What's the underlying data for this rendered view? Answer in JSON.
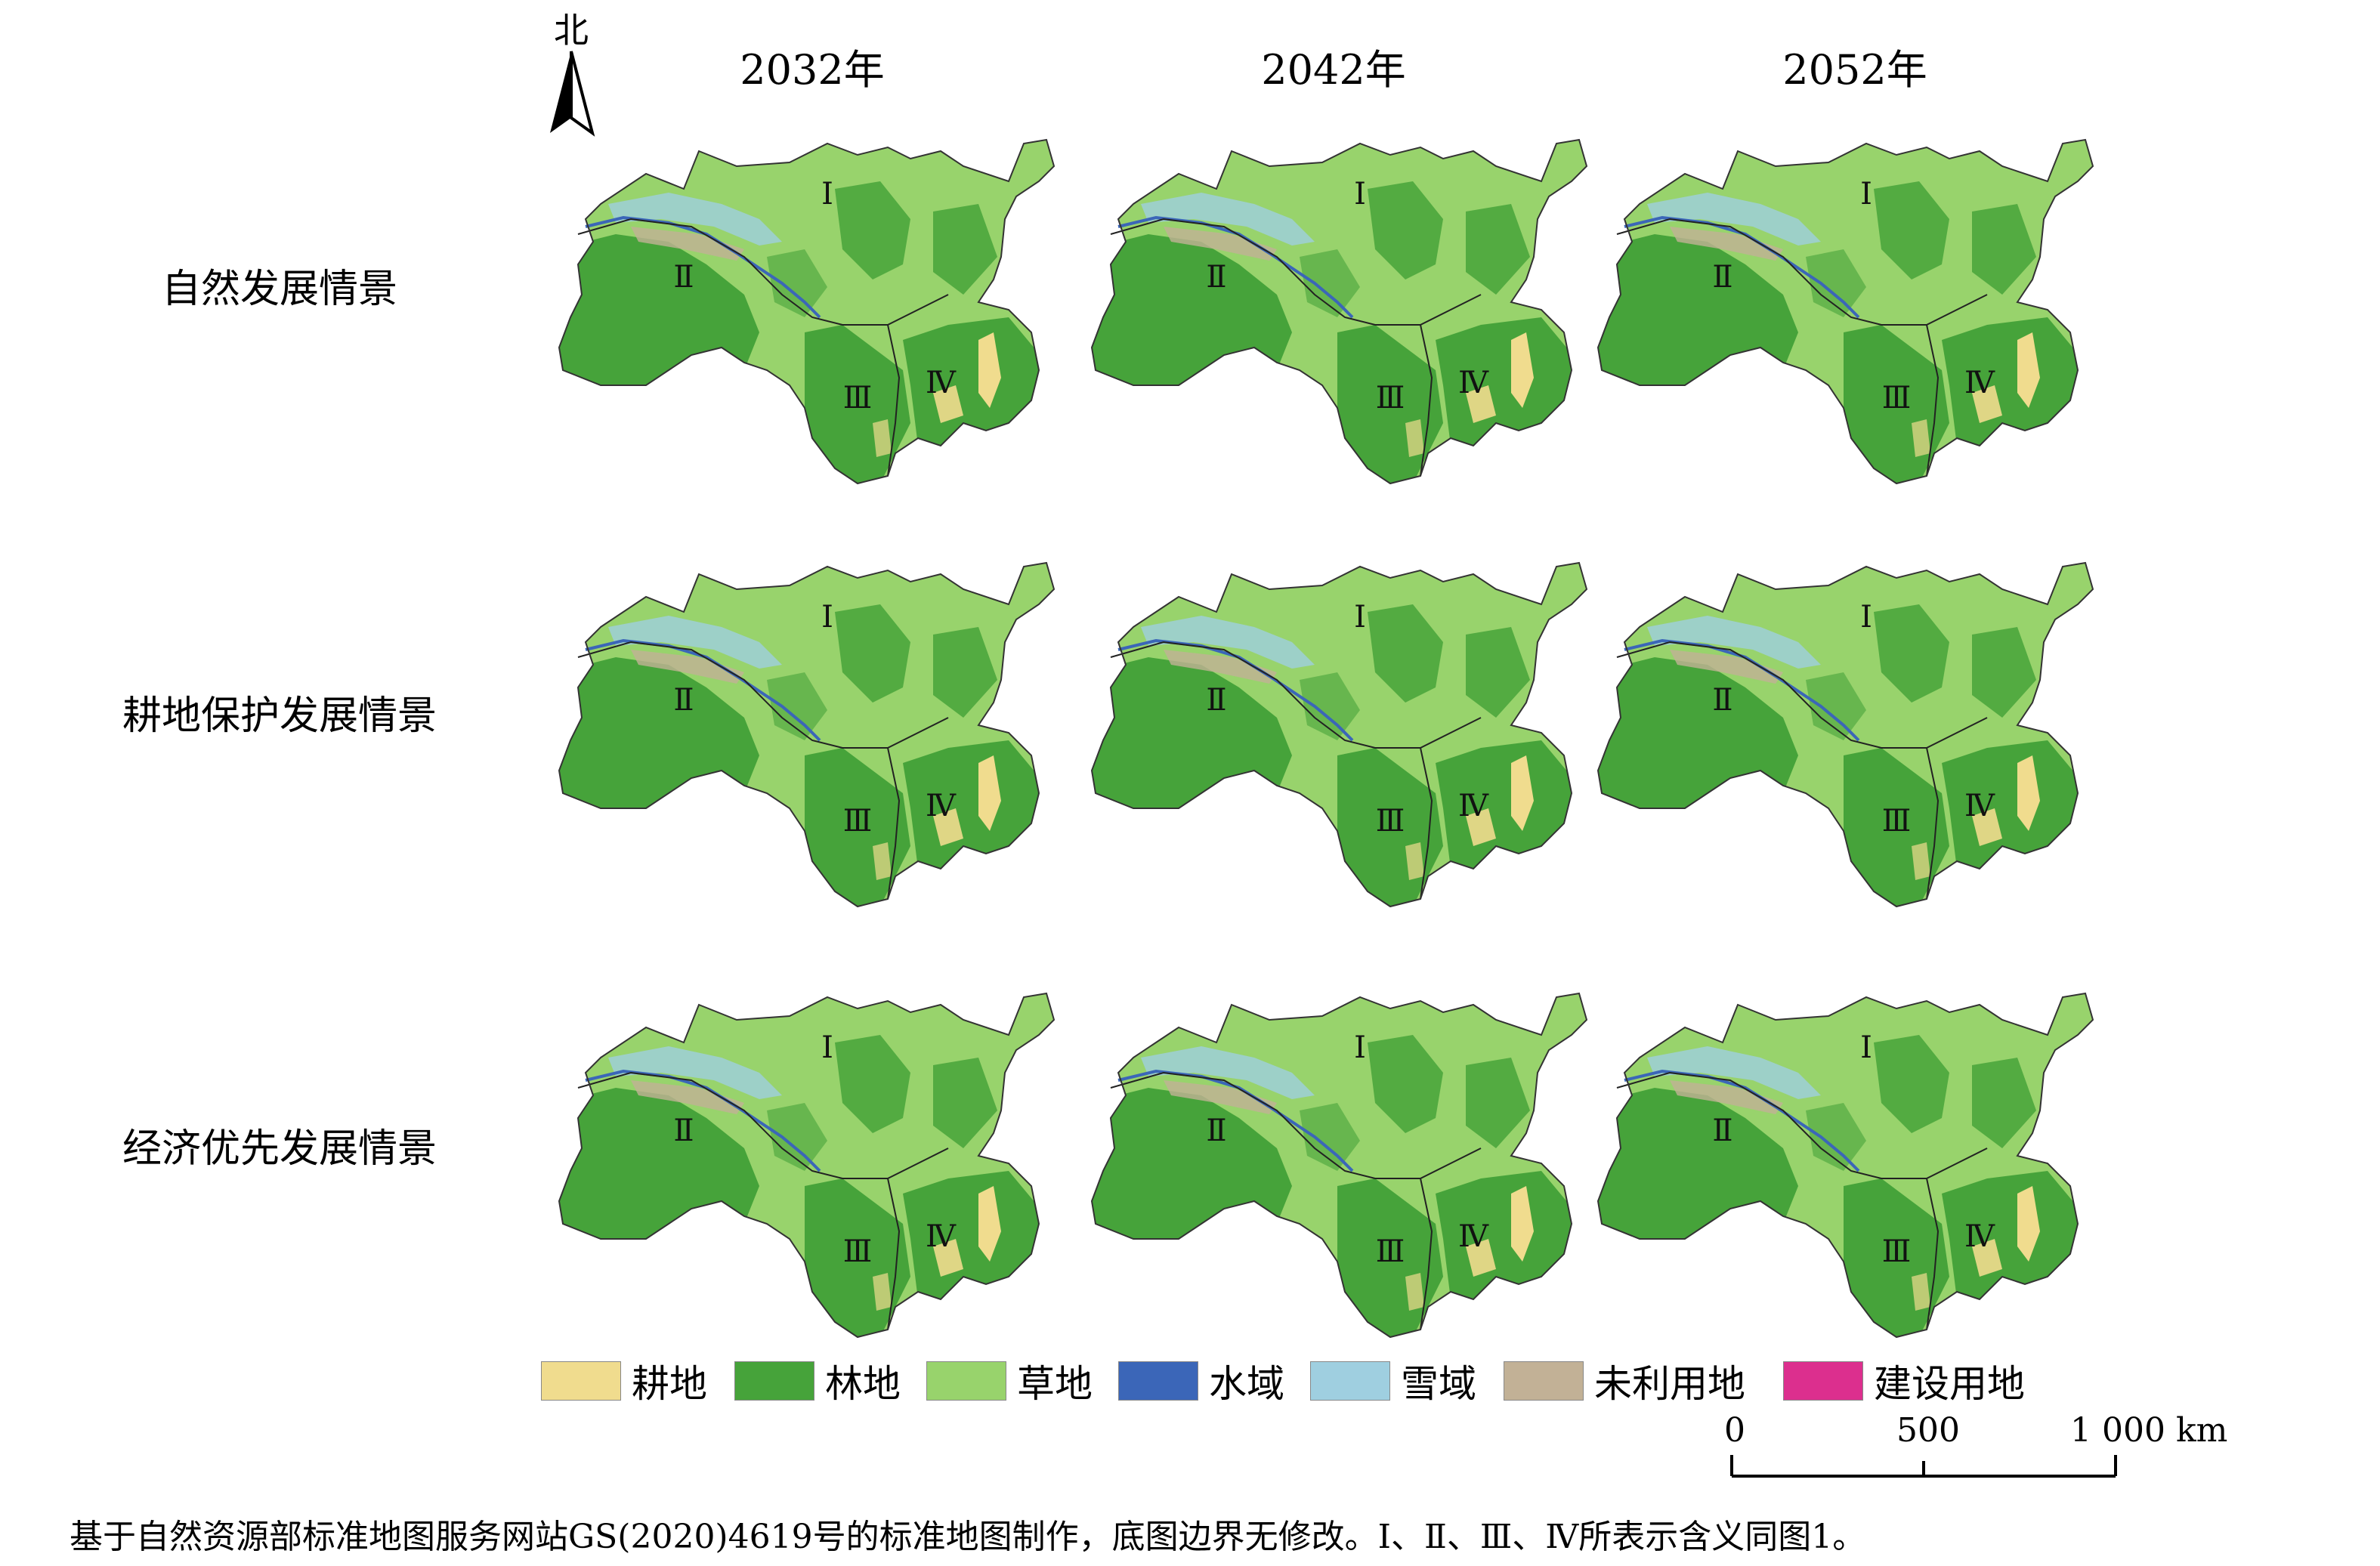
{
  "north_label": "北",
  "years": [
    "2032年",
    "2042年",
    "2052年"
  ],
  "scenarios": [
    "自然发展情景",
    "耕地保护发展情景",
    "经济优先发展情景"
  ],
  "region_labels": [
    "Ⅰ",
    "Ⅱ",
    "Ⅲ",
    "Ⅳ"
  ],
  "legend": [
    {
      "label": "耕地",
      "color": "#f0dc8e"
    },
    {
      "label": "林地",
      "color": "#46a33a"
    },
    {
      "label": "草地",
      "color": "#98d36c"
    },
    {
      "label": "水域",
      "color": "#3b66b8"
    },
    {
      "label": "雪域",
      "color": "#9fcfe0"
    },
    {
      "label": "未利用地",
      "color": "#c2b196"
    },
    {
      "label": "建设用地",
      "color": "#dc2f8e"
    }
  ],
  "scale_bar": {
    "labels": [
      "0",
      "500",
      "1 000 km"
    ]
  },
  "caption": "基于自然资源部标准地图服务网站GS(2020)4619号的标准地图制作，底图边界无修改。Ⅰ、Ⅱ、Ⅲ、Ⅳ所表示含义同图1。"
}
